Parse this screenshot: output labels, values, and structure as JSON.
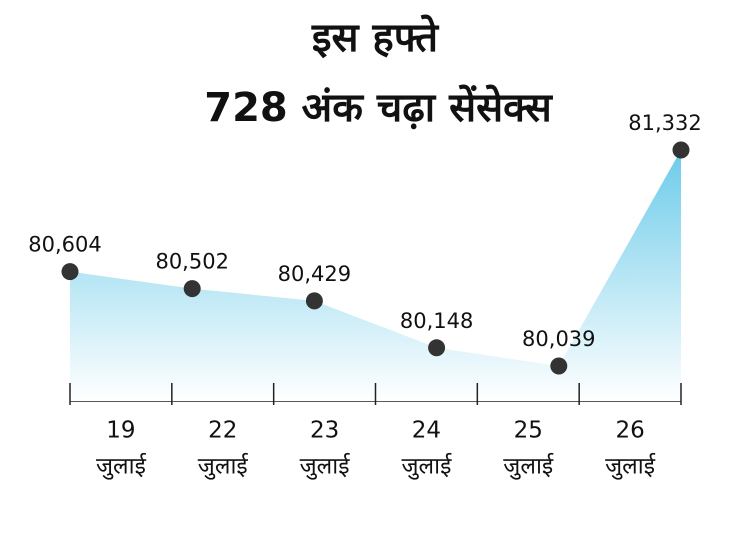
{
  "chart_data": {
    "type": "area",
    "title": [
      "इस हफ्ते",
      "728 अंक चढ़ा सेंसेक्स"
    ],
    "categories": [
      [
        "19",
        "जुलाई"
      ],
      [
        "22",
        "जुलाई"
      ],
      [
        "23",
        "जुलाई"
      ],
      [
        "24",
        "जुलाई"
      ],
      [
        "25",
        "जुलाई"
      ],
      [
        "26",
        "जुलाई"
      ]
    ],
    "values": [
      80604,
      80502,
      80429,
      80148,
      80039,
      81332
    ],
    "value_labels": [
      "80,604",
      "80,502",
      "80,429",
      "80,148",
      "80,039",
      "81,332"
    ],
    "color": "#6ccbea",
    "marker_color": "#333333"
  }
}
